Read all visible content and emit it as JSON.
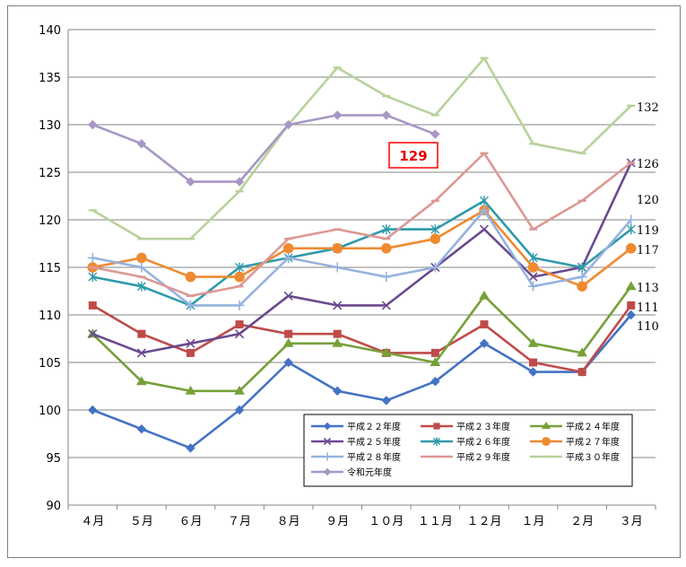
{
  "chart_data": {
    "type": "line",
    "categories": [
      "４月",
      "５月",
      "６月",
      "７月",
      "８月",
      "９月",
      "１０月",
      "１１月",
      "１２月",
      "１月",
      "２月",
      "３月"
    ],
    "ylim": [
      90,
      140
    ],
    "yticks": [
      "90",
      "95",
      "100",
      "105",
      "110",
      "115",
      "120",
      "125",
      "130",
      "135",
      "140"
    ],
    "grid": true,
    "legend_position": "bottom-right",
    "series": [
      {
        "name": "平成２２年度",
        "color": "#4472c4",
        "marker": "diamond",
        "values": [
          100,
          98,
          96,
          100,
          105,
          102,
          101,
          103,
          107,
          104,
          104,
          110
        ]
      },
      {
        "name": "平成２３年度",
        "color": "#be4b48",
        "marker": "square",
        "values": [
          111,
          108,
          106,
          109,
          108,
          108,
          106,
          106,
          109,
          105,
          104,
          111
        ]
      },
      {
        "name": "平成２４年度",
        "color": "#77a03a",
        "marker": "triangle",
        "values": [
          108,
          103,
          102,
          102,
          107,
          107,
          106,
          105,
          112,
          107,
          106,
          113
        ]
      },
      {
        "name": "平成２５年度",
        "color": "#6a4a8f",
        "marker": "x",
        "values": [
          108,
          106,
          107,
          108,
          112,
          111,
          111,
          115,
          119,
          114,
          115,
          126
        ]
      },
      {
        "name": "平成２６年度",
        "color": "#2f9aaa",
        "marker": "star",
        "values": [
          114,
          113,
          111,
          115,
          116,
          117,
          119,
          119,
          122,
          116,
          115,
          119
        ]
      },
      {
        "name": "平成２７年度",
        "color": "#ef8a31",
        "marker": "circle",
        "values": [
          115,
          116,
          114,
          114,
          117,
          117,
          117,
          118,
          121,
          115,
          113,
          117
        ]
      },
      {
        "name": "平成２８年度",
        "color": "#95b2de",
        "marker": "plus",
        "values": [
          116,
          115,
          111,
          111,
          116,
          115,
          114,
          115,
          121,
          113,
          114,
          120
        ]
      },
      {
        "name": "平成２９年度",
        "color": "#dc9894",
        "marker": "dash",
        "values": [
          115,
          114,
          112,
          113,
          118,
          119,
          118,
          122,
          127,
          119,
          122,
          126
        ]
      },
      {
        "name": "平成３０年度",
        "color": "#b8d29b",
        "marker": "dash",
        "values": [
          121,
          118,
          118,
          123,
          130,
          136,
          133,
          131,
          137,
          128,
          127,
          132
        ]
      },
      {
        "name": "令和元年度",
        "color": "#a797c5",
        "marker": "diamond",
        "values": [
          130,
          128,
          124,
          124,
          130,
          131,
          131,
          129,
          null,
          null,
          null,
          null
        ]
      }
    ],
    "end_labels": [
      {
        "text": "132",
        "series": "平成３０年度"
      },
      {
        "text": "126",
        "series": "平成２９年度"
      },
      {
        "text": "120",
        "series": "平成２８年度"
      },
      {
        "text": "119",
        "series": "平成２６年度"
      },
      {
        "text": "117",
        "series": "平成２７年度"
      },
      {
        "text": "113",
        "series": "平成２４年度"
      },
      {
        "text": "111",
        "series": "平成２３年度"
      },
      {
        "text": "110",
        "series": "平成２２年度"
      }
    ],
    "callout": {
      "text": "129",
      "series": "令和元年度",
      "color": "#ff0000"
    }
  }
}
